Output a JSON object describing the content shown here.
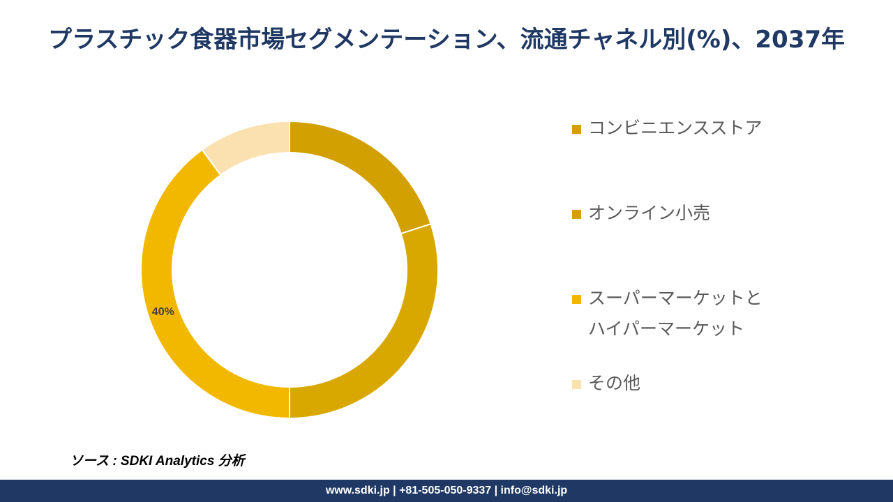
{
  "title": "プラスチック食器市場セグメンテーション、流通チャネル別(%)、2037年",
  "source": "ソース : SDKI Analytics 分析",
  "footer": "www.sdki.jp | +81-505-050-9337 | info@sdki.jp",
  "chart_data": {
    "type": "pie",
    "donut": true,
    "title": "プラスチック食器市場セグメンテーション、流通チャネル別(%)、2037年",
    "legend_position": "right",
    "categories": [
      "コンビニエンスストア",
      "オンライン小売",
      "スーパーマーケットとハイパーマーケット",
      "その他"
    ],
    "values": [
      20,
      30,
      40,
      10
    ],
    "colors": [
      "#d2a000",
      "#d8a800",
      "#f2b800",
      "#fbe0b0"
    ],
    "data_labels": [
      "",
      "",
      "40%",
      ""
    ]
  },
  "legend": [
    {
      "lines": [
        "コンビニエンスストア"
      ],
      "color": "#d2a000"
    },
    {
      "lines": [
        "オンライン小売"
      ],
      "color": "#d2a000"
    },
    {
      "lines": [
        "スーパーマーケットと",
        "ハイパーマーケット"
      ],
      "color": "#f2b800"
    },
    {
      "lines": [
        "その他"
      ],
      "color": "#fbe0b0"
    }
  ]
}
